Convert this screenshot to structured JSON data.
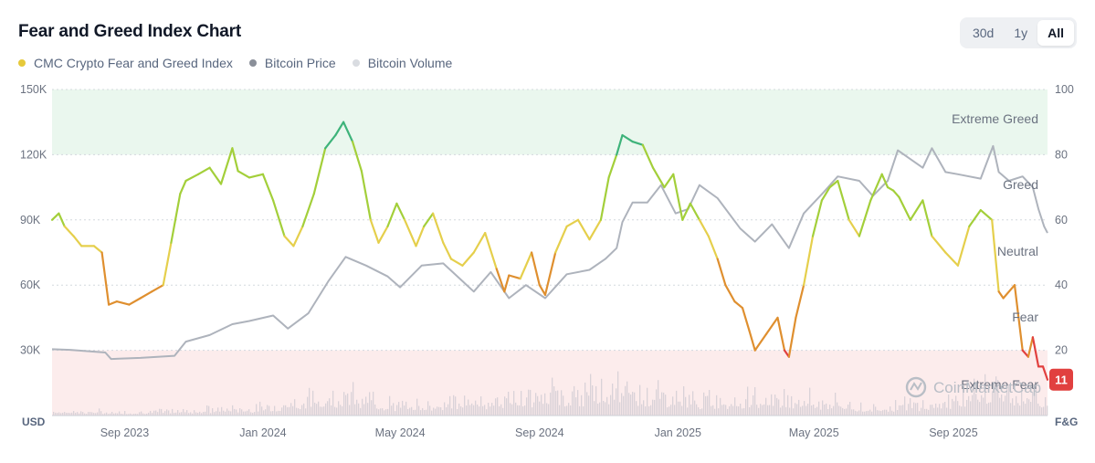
{
  "header": {
    "title": "Fear and Greed Index Chart",
    "range_buttons": [
      "30d",
      "1y",
      "All"
    ],
    "active_range": "All"
  },
  "legend": [
    {
      "label": "CMC Crypto Fear and Greed Index",
      "color": "#e6c93a"
    },
    {
      "label": "Bitcoin Price",
      "color": "#8a8f99"
    },
    {
      "label": "Bitcoin Volume",
      "color": "#d9dce1"
    }
  ],
  "watermark": "CoinMarketCap",
  "chart_data": {
    "type": "line",
    "x_ticks": [
      "Sep 2023",
      "Jan 2024",
      "May 2024",
      "Sep 2024",
      "Jan 2025",
      "May 2025",
      "Sep 2025"
    ],
    "x_range": [
      "2023-06-29",
      "2025-11-23"
    ],
    "left_axis": {
      "unit_label": "USD",
      "ticks": [
        "150K",
        "120K",
        "90K",
        "60K",
        "30K"
      ],
      "range": [
        0,
        150000
      ]
    },
    "right_axis": {
      "unit_label": "F&G",
      "ticks": [
        "100",
        "80",
        "60",
        "40",
        "20"
      ],
      "range": [
        0,
        100
      ]
    },
    "zones": [
      {
        "label": "Extreme Greed",
        "from": 80,
        "to": 100,
        "color": "#eaf7ee"
      },
      {
        "label": "Greed",
        "from": 60,
        "to": 80
      },
      {
        "label": "Neutral",
        "from": 40,
        "to": 60
      },
      {
        "label": "Fear",
        "from": 20,
        "to": 40
      },
      {
        "label": "Extreme Fear",
        "from": 0,
        "to": 20,
        "color": "#fcecec"
      }
    ],
    "current_value": "11",
    "grid": true,
    "series": [
      {
        "name": "CMC Crypto Fear and Greed Index",
        "axis": "right",
        "x": [
          "2023-06-29",
          "2023-07-05",
          "2023-07-10",
          "2023-07-18",
          "2023-07-25",
          "2023-08-05",
          "2023-08-12",
          "2023-08-18",
          "2023-08-25",
          "2023-09-05",
          "2023-09-15",
          "2023-09-25",
          "2023-10-05",
          "2023-10-12",
          "2023-10-20",
          "2023-10-25",
          "2023-11-05",
          "2023-11-15",
          "2023-11-25",
          "2023-12-05",
          "2023-12-10",
          "2023-12-20",
          "2024-01-01",
          "2024-01-10",
          "2024-01-20",
          "2024-01-28",
          "2024-02-05",
          "2024-02-15",
          "2024-02-25",
          "2024-03-05",
          "2024-03-12",
          "2024-03-20",
          "2024-03-28",
          "2024-04-05",
          "2024-04-12",
          "2024-04-20",
          "2024-04-28",
          "2024-05-05",
          "2024-05-15",
          "2024-05-22",
          "2024-05-30",
          "2024-06-08",
          "2024-06-15",
          "2024-06-25",
          "2024-07-05",
          "2024-07-15",
          "2024-07-25",
          "2024-08-01",
          "2024-08-05",
          "2024-08-15",
          "2024-08-25",
          "2024-09-01",
          "2024-09-06",
          "2024-09-15",
          "2024-09-25",
          "2024-10-05",
          "2024-10-15",
          "2024-10-25",
          "2024-11-01",
          "2024-11-08",
          "2024-11-13",
          "2024-11-22",
          "2024-12-01",
          "2024-12-10",
          "2024-12-20",
          "2024-12-28",
          "2025-01-05",
          "2025-01-12",
          "2025-01-20",
          "2025-01-28",
          "2025-02-05",
          "2025-02-12",
          "2025-02-20",
          "2025-02-27",
          "2025-03-05",
          "2025-03-10",
          "2025-03-20",
          "2025-03-30",
          "2025-04-05",
          "2025-04-09",
          "2025-04-15",
          "2025-04-22",
          "2025-04-30",
          "2025-05-08",
          "2025-05-15",
          "2025-05-22",
          "2025-06-01",
          "2025-06-10",
          "2025-06-20",
          "2025-06-30",
          "2025-07-05",
          "2025-07-10",
          "2025-07-15",
          "2025-07-25",
          "2025-08-05",
          "2025-08-13",
          "2025-08-25",
          "2025-09-05",
          "2025-09-15",
          "2025-09-25",
          "2025-10-05",
          "2025-10-11",
          "2025-10-15",
          "2025-10-25",
          "2025-11-01",
          "2025-11-06",
          "2025-11-10",
          "2025-11-15",
          "2025-11-19",
          "2025-11-23"
        ],
        "y": [
          60,
          62,
          58,
          55,
          52,
          52,
          50,
          34,
          35,
          34,
          36,
          38,
          40,
          53,
          68,
          72,
          74,
          76,
          71,
          82,
          75,
          73,
          74,
          66,
          55,
          52,
          58,
          68,
          82,
          86,
          90,
          84,
          75,
          60,
          53,
          58,
          65,
          60,
          52,
          58,
          62,
          53,
          48,
          46,
          50,
          56,
          45,
          38,
          43,
          42,
          50,
          40,
          37,
          50,
          58,
          60,
          54,
          60,
          73,
          80,
          86,
          84,
          83,
          76,
          70,
          74,
          60,
          65,
          60,
          55,
          48,
          40,
          35,
          33,
          26,
          20,
          25,
          30,
          20,
          18,
          30,
          40,
          55,
          66,
          70,
          72,
          60,
          55,
          66,
          74,
          70,
          69,
          67,
          60,
          66,
          55,
          50,
          46,
          58,
          63,
          60,
          38,
          36,
          40,
          20,
          18,
          24,
          15,
          15,
          11
        ]
      },
      {
        "name": "Bitcoin Price",
        "axis": "left",
        "x": [
          "2023-06-29",
          "2023-07-15",
          "2023-08-15",
          "2023-08-20",
          "2023-09-15",
          "2023-10-15",
          "2023-10-25",
          "2023-11-15",
          "2023-12-05",
          "2023-12-20",
          "2024-01-10",
          "2024-01-23",
          "2024-02-10",
          "2024-02-28",
          "2024-03-14",
          "2024-04-01",
          "2024-04-20",
          "2024-05-01",
          "2024-05-20",
          "2024-06-08",
          "2024-07-05",
          "2024-07-20",
          "2024-08-05",
          "2024-08-20",
          "2024-09-06",
          "2024-09-25",
          "2024-10-15",
          "2024-10-29",
          "2024-11-08",
          "2024-11-13",
          "2024-11-22",
          "2024-12-05",
          "2024-12-17",
          "2024-12-30",
          "2025-01-10",
          "2025-01-20",
          "2025-02-05",
          "2025-02-25",
          "2025-03-10",
          "2025-03-25",
          "2025-04-09",
          "2025-04-22",
          "2025-05-10",
          "2025-05-22",
          "2025-06-10",
          "2025-06-22",
          "2025-07-05",
          "2025-07-14",
          "2025-07-25",
          "2025-08-05",
          "2025-08-13",
          "2025-08-25",
          "2025-09-05",
          "2025-09-25",
          "2025-10-06",
          "2025-10-11",
          "2025-10-20",
          "2025-11-01",
          "2025-11-10",
          "2025-11-15",
          "2025-11-20",
          "2025-11-23"
        ],
        "y": [
          30500,
          30200,
          29000,
          26000,
          26500,
          27500,
          34000,
          37000,
          42000,
          43500,
          46000,
          40000,
          47000,
          62000,
          73000,
          69000,
          64000,
          59000,
          69000,
          70000,
          57000,
          66000,
          54000,
          60000,
          54000,
          65000,
          67000,
          72000,
          77000,
          89000,
          98000,
          98000,
          106000,
          93000,
          95000,
          106000,
          100000,
          86000,
          80000,
          88000,
          77000,
          93000,
          103000,
          110000,
          108000,
          101000,
          108000,
          122000,
          118000,
          114000,
          123000,
          112000,
          111000,
          109000,
          124000,
          112000,
          108000,
          110000,
          105000,
          95000,
          87000,
          84000
        ]
      },
      {
        "name": "Bitcoin Volume",
        "axis": "left",
        "x": [
          "2023-06-29",
          "2023-09-01",
          "2024-01-01",
          "2024-03-10",
          "2024-05-01",
          "2024-08-05",
          "2024-11-15",
          "2025-01-20",
          "2025-04-09",
          "2025-06-15",
          "2025-08-15",
          "2025-10-11",
          "2025-11-23"
        ],
        "y": [
          3000,
          2000,
          5000,
          14000,
          6000,
          12000,
          17000,
          10000,
          12000,
          5000,
          8000,
          18000,
          10000
        ]
      }
    ]
  }
}
